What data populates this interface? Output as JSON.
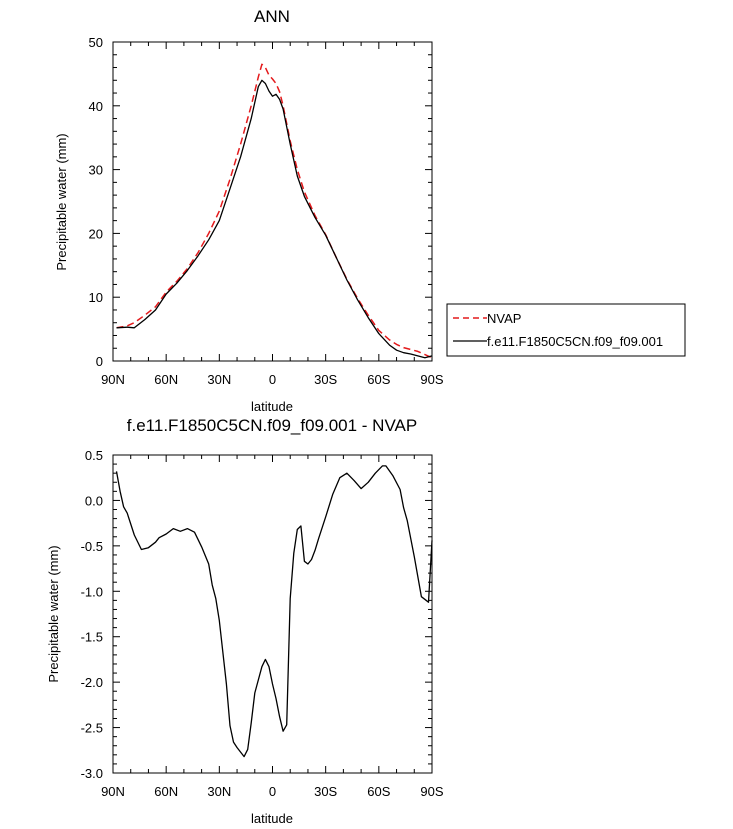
{
  "colors": {
    "nvap": "#e41a1c",
    "model": "#000000",
    "background": "#ffffff"
  },
  "chart_data": [
    {
      "type": "line",
      "title": "ANN",
      "xlabel": "latitude",
      "ylabel": "Precipitable water (mm)",
      "xlim": [
        90,
        -90
      ],
      "ylim": [
        0,
        50
      ],
      "xticks": [
        90,
        60,
        30,
        0,
        -30,
        -60,
        -90
      ],
      "xtick_labels": [
        "90N",
        "60N",
        "30N",
        "0",
        "30S",
        "60S",
        "90S"
      ],
      "yticks": [
        0,
        10,
        20,
        30,
        40,
        50
      ],
      "ytick_labels": [
        "0",
        "10",
        "20",
        "30",
        "40",
        "50"
      ],
      "grid": false,
      "legend": {
        "position": "right",
        "entries": [
          "NVAP",
          "f.e11.F1850C5CN.f09_f09.001"
        ]
      },
      "series": [
        {
          "name": "NVAP",
          "color": "#e41a1c",
          "dash": true,
          "x": [
            88,
            82,
            78,
            72,
            66,
            60,
            54,
            48,
            42,
            36,
            30,
            24,
            18,
            12,
            8,
            6,
            4,
            2,
            0,
            -2,
            -4,
            -6,
            -10,
            -14,
            -18,
            -24,
            -30,
            -36,
            -42,
            -48,
            -54,
            -60,
            -66,
            -70,
            -74,
            -78,
            -82,
            -86,
            -90
          ],
          "y": [
            5.2,
            5.5,
            6.0,
            7.2,
            8.5,
            10.8,
            12.5,
            14.5,
            17.0,
            20.0,
            23.5,
            28.5,
            34.0,
            40.0,
            44.5,
            46.5,
            46.0,
            44.8,
            44.2,
            43.5,
            42.2,
            40.0,
            34.5,
            30.0,
            26.5,
            22.8,
            19.8,
            16.2,
            12.8,
            9.8,
            7.2,
            4.8,
            3.3,
            2.6,
            2.1,
            1.8,
            1.5,
            1.0,
            0.5
          ]
        },
        {
          "name": "f.e11.F1850C5CN.f09_f09.001",
          "color": "#000000",
          "dash": false,
          "x": [
            88,
            82,
            78,
            72,
            66,
            60,
            54,
            48,
            42,
            36,
            30,
            24,
            18,
            12,
            8,
            6,
            4,
            2,
            0,
            -2,
            -4,
            -6,
            -10,
            -14,
            -18,
            -24,
            -30,
            -36,
            -42,
            -48,
            -54,
            -60,
            -66,
            -70,
            -74,
            -78,
            -82,
            -86,
            -90
          ],
          "y": [
            5.2,
            5.3,
            5.2,
            6.5,
            8.0,
            10.5,
            12.2,
            14.2,
            16.5,
            19.0,
            22.0,
            27.0,
            32.0,
            38.0,
            43.0,
            44.0,
            43.5,
            42.3,
            41.5,
            41.8,
            41.0,
            39.5,
            34.0,
            29.0,
            25.8,
            22.5,
            19.7,
            16.2,
            12.7,
            9.6,
            6.8,
            4.3,
            2.5,
            1.7,
            1.3,
            1.1,
            0.8,
            0.5,
            0.8
          ]
        }
      ]
    },
    {
      "type": "line",
      "title": "f.e11.F1850C5CN.f09_f09.001 - NVAP",
      "xlabel": "latitude",
      "ylabel": "Precipitable water (mm)",
      "xlim": [
        90,
        -90
      ],
      "ylim": [
        -3.0,
        0.5
      ],
      "xticks": [
        90,
        60,
        30,
        0,
        -30,
        -60,
        -90
      ],
      "xtick_labels": [
        "90N",
        "60N",
        "30N",
        "0",
        "30S",
        "60S",
        "90S"
      ],
      "yticks": [
        0.5,
        0.0,
        -0.5,
        -1.0,
        -1.5,
        -2.0,
        -2.5,
        -3.0
      ],
      "ytick_labels": [
        "0.5",
        "0.0",
        "-0.5",
        "-1.0",
        "-1.5",
        "-2.0",
        "-2.5",
        "-3.0"
      ],
      "grid": false,
      "series": [
        {
          "color": "#000000",
          "dash": false,
          "x": [
            88,
            86,
            84,
            82,
            78,
            74,
            70,
            66,
            64,
            60,
            56,
            52,
            48,
            44,
            40,
            36,
            34,
            32,
            30,
            26,
            24,
            22,
            20,
            16,
            14,
            12,
            10,
            6,
            4,
            2,
            0,
            -2,
            -4,
            -6,
            -8,
            -10,
            -12,
            -14,
            -16,
            -18,
            -20,
            -22,
            -24,
            -26,
            -30,
            -34,
            -38,
            -42,
            -46,
            -50,
            -54,
            -58,
            -62,
            -64,
            -68,
            -72,
            -74,
            -76,
            -80,
            -84,
            -88,
            -90
          ],
          "y": [
            0.32,
            0.1,
            -0.07,
            -0.14,
            -0.38,
            -0.54,
            -0.52,
            -0.46,
            -0.41,
            -0.37,
            -0.31,
            -0.34,
            -0.31,
            -0.35,
            -0.51,
            -0.7,
            -0.93,
            -1.08,
            -1.32,
            -2.02,
            -2.48,
            -2.66,
            -2.72,
            -2.82,
            -2.74,
            -2.45,
            -2.12,
            -1.83,
            -1.75,
            -1.83,
            -2.02,
            -2.18,
            -2.38,
            -2.54,
            -2.47,
            -1.08,
            -0.58,
            -0.32,
            -0.28,
            -0.67,
            -0.7,
            -0.65,
            -0.55,
            -0.42,
            -0.18,
            0.07,
            0.25,
            0.3,
            0.22,
            0.13,
            0.2,
            0.3,
            0.38,
            0.38,
            0.27,
            0.12,
            -0.08,
            -0.22,
            -0.62,
            -1.06,
            -1.12,
            -0.44
          ]
        }
      ]
    }
  ]
}
